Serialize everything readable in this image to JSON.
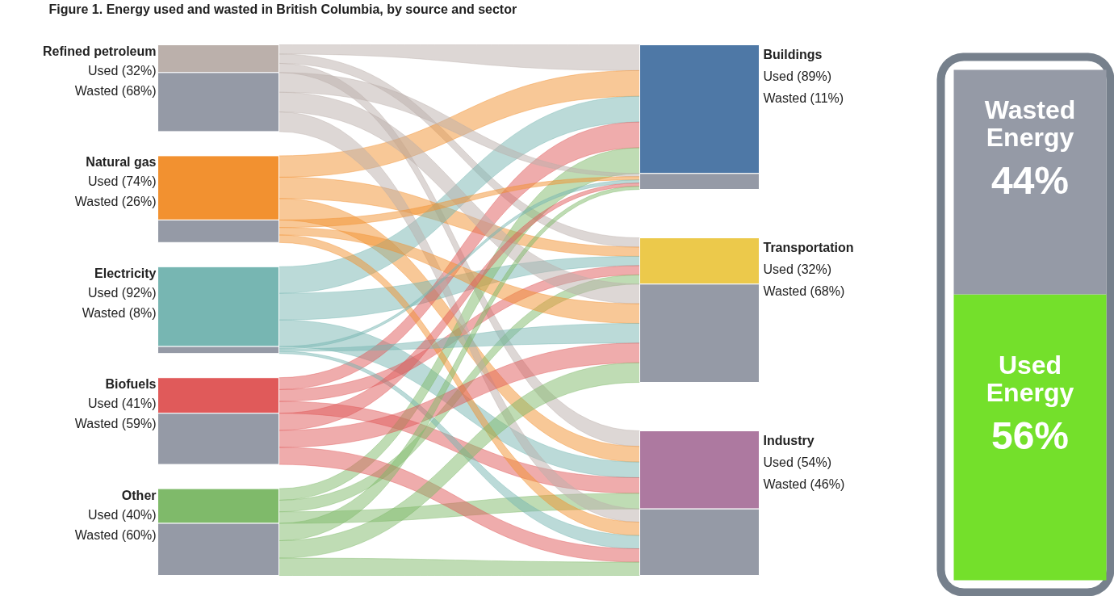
{
  "chart_data": [
    {
      "type": "other",
      "title": "Figure 1. Energy used and wasted in British Columbia, by source and sector",
      "categories": [
        "Refined petroleum",
        "Natural gas",
        "Electricity",
        "Biofuels",
        "Other"
      ],
      "series": [
        {
          "colors": [
            "#bbb0ab",
            "#f29130",
            "#77b6b2",
            "#e05a5a",
            "#7fba6a"
          ],
          "values": [
            32,
            74,
            92,
            41,
            40
          ],
          "value_labels": [
            "Used (32%)",
            "Used (74%)",
            "Used (92%)",
            "Used (41%)",
            "Used (40%)"
          ]
        },
        {
          "color": "#959aa6",
          "values": [
            68,
            26,
            8,
            59,
            60
          ],
          "value_labels": [
            "Wasted (68%)",
            "Wasted (26%)",
            "Wasted (8%)",
            "Wasted (59%)",
            "Wasted (60%)"
          ]
        }
      ]
    },
    {
      "type": "other",
      "categories": [
        "Buildings",
        "Transportation",
        "Industry"
      ],
      "series": [
        {
          "colors": [
            "#4e78a6",
            "#ecc94b",
            "#ad79a0"
          ],
          "values": [
            89,
            32,
            54
          ],
          "value_labels": [
            "Used (89%)",
            "Used (32%)",
            "Used (54%)"
          ]
        },
        {
          "color": "#959aa6",
          "values": [
            11,
            68,
            46
          ],
          "value_labels": [
            "Wasted (11%)",
            "Wasted (68%)",
            "Wasted (46%)"
          ]
        }
      ]
    },
    {
      "type": "bar",
      "stacked": true,
      "categories": [
        null
      ],
      "series": [
        {
          "name": "Used Energy",
          "color": "#74e02b",
          "values": [
            56
          ],
          "value_labels": [
            "56%"
          ]
        },
        {
          "name": "Wasted Energy",
          "color": "#959aa6",
          "values": [
            44
          ],
          "value_labels": [
            "44%"
          ]
        }
      ]
    }
  ]
}
